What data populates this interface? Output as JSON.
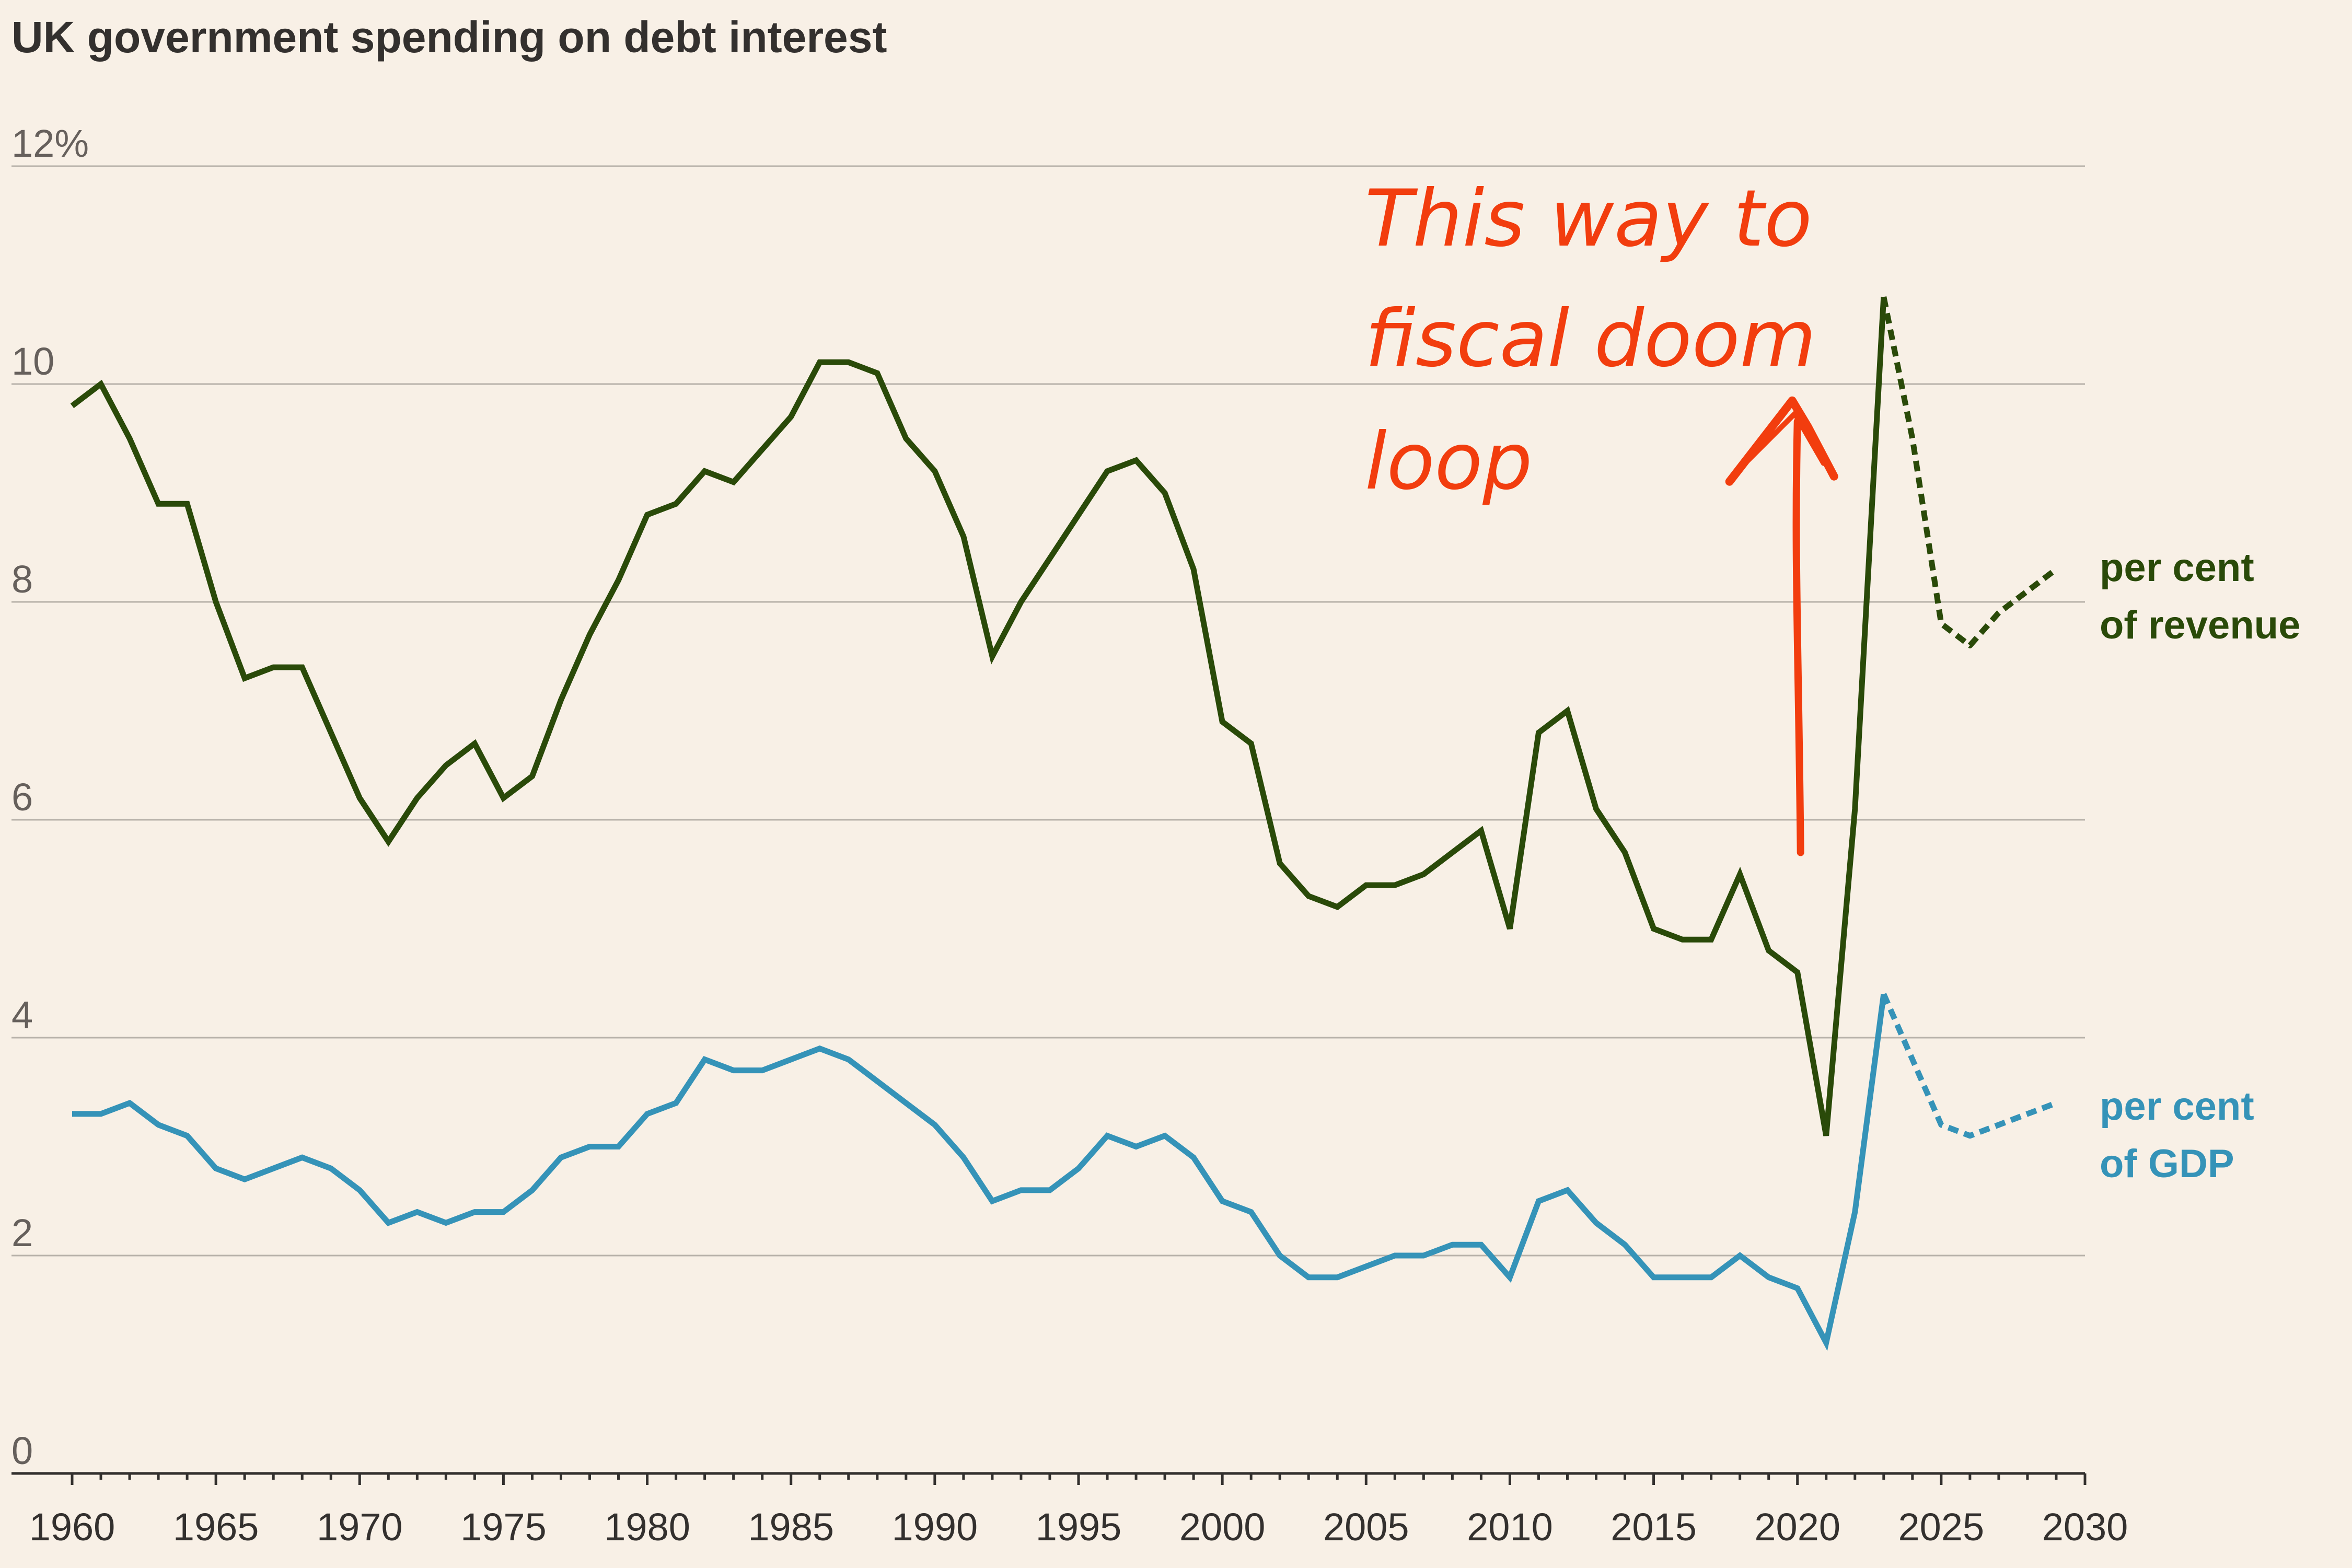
{
  "chart_data": {
    "type": "line",
    "title": "UK government spending on debt interest",
    "xlabel": "",
    "ylabel": "",
    "xlim": [
      1960,
      2030
    ],
    "ylim": [
      0,
      12
    ],
    "x_ticks": [
      "1960",
      "1965",
      "1970",
      "1975",
      "1980",
      "1985",
      "1990",
      "1995",
      "2000",
      "2005",
      "2010",
      "2015",
      "2020",
      "2025",
      "2030"
    ],
    "y_ticks": [
      "0",
      "2",
      "4",
      "6",
      "8",
      "10",
      "12%"
    ],
    "grid": true,
    "colors": {
      "revenue": "#2a4a09",
      "gdp": "#3593b8",
      "annotation": "#f23d0e",
      "background": "#f8f0e6"
    },
    "series": [
      {
        "name": "per cent of revenue",
        "label_lines": [
          "per cent",
          "of revenue"
        ],
        "actual": {
          "x": [
            1960,
            1961,
            1962,
            1963,
            1964,
            1965,
            1966,
            1967,
            1968,
            1969,
            1970,
            1971,
            1972,
            1973,
            1974,
            1975,
            1976,
            1977,
            1978,
            1979,
            1980,
            1981,
            1982,
            1983,
            1984,
            1985,
            1986,
            1987,
            1988,
            1989,
            1990,
            1991,
            1992,
            1993,
            1994,
            1995,
            1996,
            1997,
            1998,
            1999,
            2000,
            2001,
            2002,
            2003,
            2004,
            2005,
            2006,
            2007,
            2008,
            2009,
            2010,
            2011,
            2012,
            2013,
            2014,
            2015,
            2016,
            2017,
            2018,
            2019,
            2020,
            2021,
            2022,
            2023
          ],
          "y": [
            9.8,
            10.0,
            9.5,
            8.9,
            8.9,
            8.0,
            7.3,
            7.4,
            7.4,
            6.8,
            6.2,
            5.8,
            6.2,
            6.5,
            6.7,
            6.2,
            6.4,
            7.1,
            7.7,
            8.2,
            8.8,
            8.9,
            9.2,
            9.1,
            9.4,
            9.7,
            10.2,
            10.2,
            10.1,
            9.5,
            9.2,
            8.6,
            7.5,
            8.0,
            8.4,
            8.8,
            9.2,
            9.3,
            9.0,
            8.3,
            6.9,
            6.7,
            5.6,
            5.3,
            5.2,
            5.4,
            5.4,
            5.5,
            5.7,
            5.9,
            5.0,
            6.8,
            7.0,
            6.1,
            5.7,
            5.0,
            4.9,
            4.9,
            5.5,
            4.8,
            4.6,
            3.1,
            6.1,
            10.8
          ]
        },
        "forecast": {
          "x": [
            2023,
            2024,
            2025,
            2026,
            2027,
            2028,
            2029
          ],
          "y": [
            10.8,
            9.5,
            7.8,
            7.6,
            7.9,
            8.1,
            8.3
          ]
        }
      },
      {
        "name": "per cent of GDP",
        "label_lines": [
          "per cent",
          "of GDP"
        ],
        "actual": {
          "x": [
            1960,
            1961,
            1962,
            1963,
            1964,
            1965,
            1966,
            1967,
            1968,
            1969,
            1970,
            1971,
            1972,
            1973,
            1974,
            1975,
            1976,
            1977,
            1978,
            1979,
            1980,
            1981,
            1982,
            1983,
            1984,
            1985,
            1986,
            1987,
            1988,
            1989,
            1990,
            1991,
            1992,
            1993,
            1994,
            1995,
            1996,
            1997,
            1998,
            1999,
            2000,
            2001,
            2002,
            2003,
            2004,
            2005,
            2006,
            2007,
            2008,
            2009,
            2010,
            2011,
            2012,
            2013,
            2014,
            2015,
            2016,
            2017,
            2018,
            2019,
            2020,
            2021,
            2022,
            2023
          ],
          "y": [
            3.3,
            3.3,
            3.4,
            3.2,
            3.1,
            2.8,
            2.7,
            2.8,
            2.9,
            2.8,
            2.6,
            2.3,
            2.4,
            2.3,
            2.4,
            2.4,
            2.6,
            2.9,
            3.0,
            3.0,
            3.3,
            3.4,
            3.8,
            3.7,
            3.7,
            3.8,
            3.9,
            3.8,
            3.6,
            3.4,
            3.2,
            2.9,
            2.5,
            2.6,
            2.6,
            2.8,
            3.1,
            3.0,
            3.1,
            2.9,
            2.5,
            2.4,
            2.0,
            1.8,
            1.8,
            1.9,
            2.0,
            2.0,
            2.1,
            2.1,
            1.8,
            2.5,
            2.6,
            2.3,
            2.1,
            1.8,
            1.8,
            1.8,
            2.0,
            1.8,
            1.7,
            1.2,
            2.4,
            4.4
          ]
        },
        "forecast": {
          "x": [
            2023,
            2024,
            2025,
            2026,
            2027,
            2028,
            2029
          ],
          "y": [
            4.4,
            3.8,
            3.2,
            3.1,
            3.2,
            3.3,
            3.4
          ]
        }
      }
    ],
    "annotation": {
      "lines": [
        "This way to",
        "fiscal doom",
        "loop"
      ],
      "arrow_from": [
        2020,
        5.7
      ],
      "arrow_to": [
        2020,
        9.8
      ]
    }
  }
}
